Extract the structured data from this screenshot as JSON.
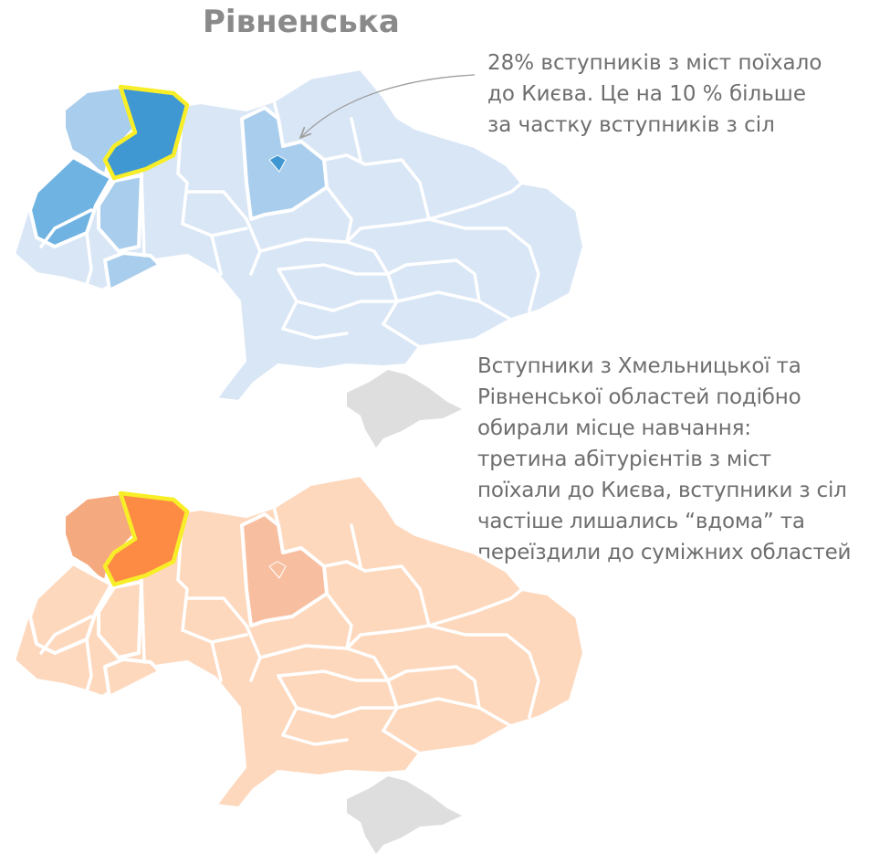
{
  "title": "Рівненська",
  "notes": {
    "top": "28% вступників з міст поїхало\nдо Києва. Це на 10 % більше\nза частку вступників з сіл",
    "bottom": "Вступники з Хмельницької та\nРівненської областей подібно\nобирали місце навчання:\nтретина абітурієнтів з міст\nпоїхали до Києва, вступники з сіл\nчастіше лишались “вдома”  та\nпереїздили до суміжних областей"
  },
  "colors": {
    "blue_base": "#d9e6f6",
    "blue_light": "#a9cdec",
    "blue_mid": "#6fb3e2",
    "blue_dark": "#3f98d2",
    "orange_base": "#fdd8bd",
    "orange_light": "#f7bfa0",
    "orange_mid": "#f5a97f",
    "orange_dark": "#fe8b44",
    "crimea": "#dedede",
    "highlight": "#f8ee27",
    "arrow": "#9e9e9e"
  },
  "maps": [
    {
      "name": "cities",
      "highlighted": "Рівненська",
      "regions": [
        {
          "region": "base",
          "shade": "blue_base"
        },
        {
          "region": "Волинська",
          "shade": "blue_light"
        },
        {
          "region": "Рівненська",
          "shade": "blue_dark"
        },
        {
          "region": "Львівська",
          "shade": "blue_mid"
        },
        {
          "region": "Тернопільська",
          "shade": "blue_light"
        },
        {
          "region": "Чернівецька",
          "shade": "blue_light"
        },
        {
          "region": "Київська",
          "shade": "blue_light"
        },
        {
          "region": "м. Київ",
          "shade": "blue_dark"
        },
        {
          "region": "АР Крим",
          "shade": "crimea"
        }
      ]
    },
    {
      "name": "villages",
      "highlighted": "Рівненська",
      "regions": [
        {
          "region": "base",
          "shade": "orange_base"
        },
        {
          "region": "Волинська",
          "shade": "orange_mid"
        },
        {
          "region": "Рівненська",
          "shade": "orange_dark"
        },
        {
          "region": "Львівська",
          "shade": "orange_base"
        },
        {
          "region": "Тернопільська",
          "shade": "orange_base"
        },
        {
          "region": "Хмельницька",
          "shade": "orange_base"
        },
        {
          "region": "Київська",
          "shade": "orange_light"
        },
        {
          "region": "м. Київ",
          "shade": "orange_light"
        },
        {
          "region": "АР Крим",
          "shade": "crimea"
        }
      ]
    }
  ]
}
